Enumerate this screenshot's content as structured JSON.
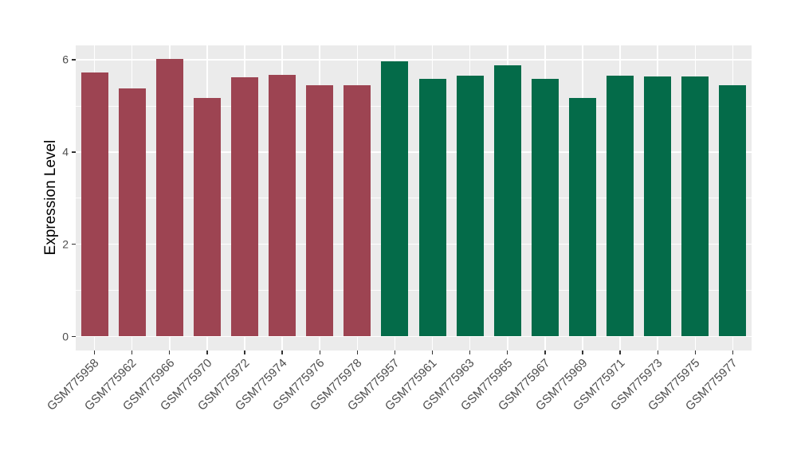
{
  "figure": {
    "background": "#FFFFFF",
    "panel_background": "#EBEBEB",
    "gridline_color": "#FFFFFF",
    "tick_mark_color": "#333333",
    "tick_label_color": "#4D4D4D",
    "axis_title_color": "#000000"
  },
  "chart_data": {
    "type": "bar",
    "title": "",
    "xlabel": "",
    "ylabel": "Expression Level",
    "ylim": [
      0,
      6.3
    ],
    "yticks": [
      0,
      2,
      4,
      6
    ],
    "minor_gridlines": [
      1,
      3,
      5
    ],
    "grid": true,
    "legend_position": "none",
    "x_label_rotation_deg": 45,
    "categories": [
      "GSM775958",
      "GSM775962",
      "GSM775966",
      "GSM775970",
      "GSM775972",
      "GSM775974",
      "GSM775976",
      "GSM775978",
      "GSM775957",
      "GSM775961",
      "GSM775963",
      "GSM775965",
      "GSM775967",
      "GSM775969",
      "GSM775971",
      "GSM775973",
      "GSM775975",
      "GSM775977"
    ],
    "values": [
      5.73,
      5.38,
      6.02,
      5.17,
      5.62,
      5.67,
      5.45,
      5.45,
      5.97,
      5.59,
      5.66,
      5.88,
      5.59,
      5.17,
      5.66,
      5.64,
      5.64,
      5.45
    ],
    "bar_colors": [
      "#9D4452",
      "#9D4452",
      "#9D4452",
      "#9D4452",
      "#9D4452",
      "#9D4452",
      "#9D4452",
      "#9D4452",
      "#046B49",
      "#046B49",
      "#046B49",
      "#046B49",
      "#046B49",
      "#046B49",
      "#046B49",
      "#046B49",
      "#046B49",
      "#046B49"
    ],
    "group_colors": {
      "left-group": "#9D4452",
      "right-group": "#046B49"
    }
  }
}
